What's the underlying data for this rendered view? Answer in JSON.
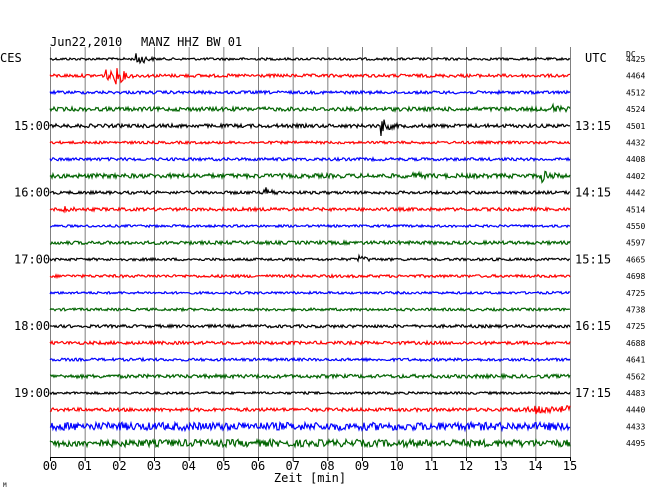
{
  "chart_data": {
    "type": "line",
    "title": "",
    "date": "Jun22,2010",
    "station": "MANZ HHZ BW 01",
    "left_tz": "CES",
    "right_tz": "UTC",
    "dc_header": "DC",
    "xlabel": "Zeit [min]",
    "corner_mark": "M",
    "x_range": [
      0,
      15
    ],
    "x_ticks": [
      "00",
      "01",
      "02",
      "03",
      "04",
      "05",
      "06",
      "07",
      "08",
      "09",
      "10",
      "11",
      "12",
      "13",
      "14",
      "15"
    ],
    "trace_colors": [
      "#000000",
      "#ff0000",
      "#0000ff",
      "#006400"
    ],
    "left_labels": [
      {
        "trace": 4,
        "text": "15:00"
      },
      {
        "trace": 8,
        "text": "16:00"
      },
      {
        "trace": 12,
        "text": "17:00"
      },
      {
        "trace": 16,
        "text": "18:00"
      },
      {
        "trace": 20,
        "text": "19:00"
      }
    ],
    "right_labels": [
      {
        "trace": 4,
        "text": "13:15"
      },
      {
        "trace": 8,
        "text": "14:15"
      },
      {
        "trace": 12,
        "text": "15:15"
      },
      {
        "trace": 16,
        "text": "16:15"
      },
      {
        "trace": 20,
        "text": "17:15"
      }
    ],
    "dc_values": [
      "4425",
      "4464",
      "4512",
      "4524",
      "4501",
      "4432",
      "4408",
      "4402",
      "4442",
      "4514",
      "4550",
      "4597",
      "4665",
      "4698",
      "4725",
      "4738",
      "4725",
      "4688",
      "4641",
      "4562",
      "4483",
      "4440",
      "4433",
      "4495"
    ],
    "noise_level": [
      1.2,
      1.6,
      1.5,
      2.0,
      1.8,
      1.3,
      1.5,
      2.2,
      1.5,
      1.6,
      1.2,
      1.7,
      1.3,
      1.4,
      1.2,
      1.3,
      1.5,
      1.6,
      1.4,
      1.8,
      1.2,
      1.7,
      4.0,
      3.6
    ],
    "events": [
      {
        "trace": 0,
        "minute": 2.5,
        "amp": 9
      },
      {
        "trace": 1,
        "minute": 1.6,
        "amp": 7
      },
      {
        "trace": 1,
        "minute": 1.9,
        "amp": 11
      },
      {
        "trace": 3,
        "minute": 14.5,
        "amp": 4
      },
      {
        "trace": 4,
        "minute": 9.5,
        "amp": 12
      },
      {
        "trace": 7,
        "minute": 10.5,
        "amp": 3
      },
      {
        "trace": 7,
        "minute": 14.2,
        "amp": 6
      },
      {
        "trace": 8,
        "minute": 6.2,
        "amp": 5
      },
      {
        "trace": 9,
        "minute": 0.3,
        "amp": 4
      },
      {
        "trace": 12,
        "minute": 8.9,
        "amp": 4
      },
      {
        "trace": 21,
        "minute": 14.0,
        "amp": 4
      }
    ]
  }
}
